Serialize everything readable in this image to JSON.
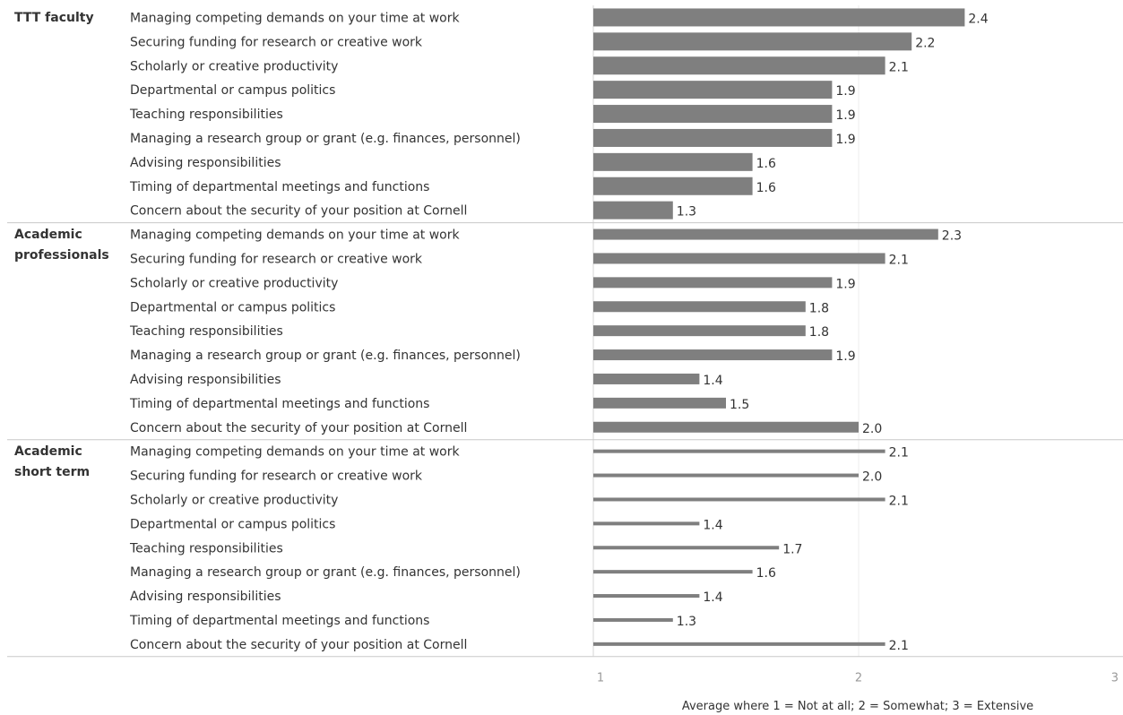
{
  "chart_data": {
    "type": "bar",
    "orientation": "horizontal",
    "xlabel": "Average where 1 = Not at all; 2 = Somewhat; 3 = Extensive",
    "xlim": [
      1,
      3
    ],
    "xticks": [
      "1",
      "2",
      "3"
    ],
    "categories": [
      "Managing competing demands on your time at work",
      "Securing funding for research or creative work",
      "Scholarly or creative productivity",
      "Departmental or campus politics",
      "Teaching responsibilities",
      "Managing a research group or grant (e.g. finances, personnel)",
      "Advising responsibilities",
      "Timing of departmental meetings and functions",
      "Concern about the security of your position at Cornell"
    ],
    "groups": [
      {
        "name": "TTT faculty",
        "name_lines": [
          "TTT faculty"
        ],
        "values": [
          2.4,
          2.2,
          2.1,
          1.9,
          1.9,
          1.9,
          1.6,
          1.6,
          1.3
        ],
        "bar_style": "thick"
      },
      {
        "name": "Academic professionals",
        "name_lines": [
          "Academic",
          "professionals"
        ],
        "values": [
          2.3,
          2.1,
          1.9,
          1.8,
          1.8,
          1.9,
          1.4,
          1.5,
          2.0
        ],
        "bar_style": "medium"
      },
      {
        "name": "Academic short term",
        "name_lines": [
          "Academic",
          "short term"
        ],
        "values": [
          2.1,
          2.0,
          2.1,
          1.4,
          1.7,
          1.6,
          1.4,
          1.3,
          2.1
        ],
        "bar_style": "thin"
      }
    ],
    "grid": true,
    "bar_color": "#7f7f7f",
    "divider_color": "#c8c8c8",
    "gridline_color": "#ececec"
  }
}
